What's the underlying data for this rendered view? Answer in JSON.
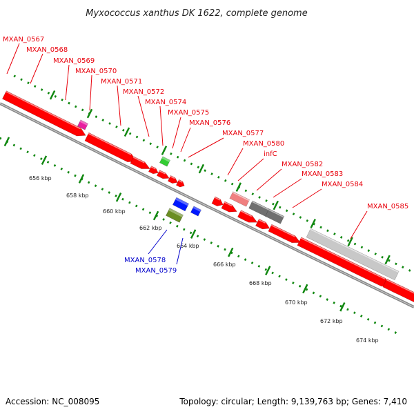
{
  "map": {
    "title": "Myxococcus xanthus DK 1622, complete genome",
    "footer_left": "Accession: NC_008095",
    "footer_right": "Topology: circular; Length: 9,139,763 bp; Genes: 7,410"
  },
  "colors": {
    "forward_label": "#e8000b",
    "reverse_label": "#0000cc",
    "cds": "#ff0000",
    "trna": "#e81ea0",
    "rrna_like": "#33cc33",
    "pseudo": "#f08080",
    "gray_gene": "#707070",
    "light_gray_gene": "#c8c8c8",
    "reverse_blue": "#0018ff",
    "reverse_olive": "#6b8e23",
    "dots": "#118811",
    "backbone": "#888888"
  },
  "scale_ticks": [
    "656 kbp",
    "658 kbp",
    "660 kbp",
    "662 kbp",
    "664 kbp",
    "666 kbp",
    "668 kbp",
    "670 kbp",
    "672 kbp",
    "674 kbp"
  ],
  "forward_genes": [
    {
      "name": "MXAN_0567"
    },
    {
      "name": "MXAN_0568"
    },
    {
      "name": "MXAN_0569"
    },
    {
      "name": "MXAN_0570"
    },
    {
      "name": "MXAN_0571"
    },
    {
      "name": "MXAN_0572"
    },
    {
      "name": "MXAN_0574"
    },
    {
      "name": "MXAN_0575"
    },
    {
      "name": "MXAN_0576"
    },
    {
      "name": "MXAN_0577"
    },
    {
      "name": "MXAN_0580"
    },
    {
      "name": "infC"
    },
    {
      "name": "MXAN_0582"
    },
    {
      "name": "MXAN_0583"
    },
    {
      "name": "MXAN_0584"
    },
    {
      "name": "MXAN_0585"
    }
  ],
  "reverse_genes": [
    {
      "name": "MXAN_0578"
    },
    {
      "name": "MXAN_0579"
    }
  ]
}
